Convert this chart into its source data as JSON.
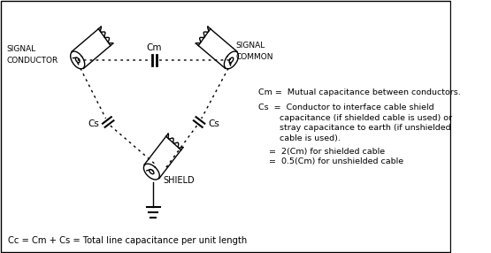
{
  "bg_color": "#ffffff",
  "border_color": "#000000",
  "line_color": "#000000",
  "text_color": "#000000",
  "title_bottom": "Cc = Cm + Cs = Total line capacitance per unit length",
  "legend_cm": "Cm =  Mutual capacitance between conductors.",
  "legend_cs_line1": "Cs  =  Conductor to interface cable shield",
  "legend_cs_line2": "        capacitance (if shielded cable is used) or",
  "legend_cs_line3": "        stray capacitance to earth (if unshielded",
  "legend_cs_line4": "        cable is used).",
  "legend_eq1": "    =  2(Cm) for shielded cable",
  "legend_eq2": "    =  0.5(Cm) for unshielded cable",
  "label_signal_conductor": "SIGNAL\nCONDUCTOR",
  "label_signal_common": "SIGNAL\nCOMMON",
  "label_shield": "SHIELD",
  "label_cm": "Cm",
  "label_cs_left": "Cs",
  "label_cs_right": "Cs"
}
